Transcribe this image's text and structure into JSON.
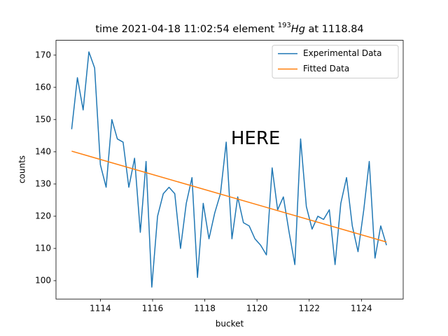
{
  "chart_data": {
    "type": "line",
    "title": {
      "prefix": "time 2021-04-18 11:02:54 element ",
      "mass": "193",
      "symbol": "Hg",
      "suffix": " at 1118.84"
    },
    "x_label": "bucket",
    "y_label": "counts",
    "annotation": {
      "text": "HERE",
      "x": 1119.0,
      "y": 144,
      "color": "#ff0000"
    },
    "series": [
      {
        "name": "Experimental Data",
        "color": "#1f77b4",
        "x": [
          1112.9,
          1113.12,
          1113.34,
          1113.56,
          1113.78,
          1114.0,
          1114.22,
          1114.44,
          1114.65,
          1114.87,
          1115.09,
          1115.31,
          1115.53,
          1115.75,
          1115.97,
          1116.19,
          1116.41,
          1116.63,
          1116.85,
          1117.07,
          1117.29,
          1117.51,
          1117.72,
          1117.94,
          1118.16,
          1118.38,
          1118.6,
          1118.82,
          1119.04,
          1119.26,
          1119.48,
          1119.7,
          1119.92,
          1120.14,
          1120.36,
          1120.58,
          1120.79,
          1121.01,
          1121.23,
          1121.45,
          1121.67,
          1121.89,
          1122.11,
          1122.33,
          1122.55,
          1122.77,
          1122.99,
          1123.21,
          1123.43,
          1123.65,
          1123.87,
          1124.09,
          1124.3,
          1124.52,
          1124.74,
          1124.96
        ],
        "values": [
          147,
          163,
          153,
          171,
          166,
          136,
          129,
          150,
          144,
          143,
          129,
          138,
          115,
          137,
          98,
          120,
          127,
          129,
          127,
          110,
          124,
          132,
          101,
          124,
          113,
          121,
          127,
          143,
          113,
          126,
          118,
          117,
          113,
          111,
          108,
          135,
          122,
          126,
          115,
          105,
          144,
          123,
          116,
          120,
          119,
          122,
          105,
          124,
          132,
          117,
          109,
          122,
          137,
          107,
          117,
          111
        ]
      },
      {
        "name": "Fitted Data",
        "color": "#ff7f0e",
        "x": [
          1112.9,
          1124.96
        ],
        "values": [
          140.2,
          112.0
        ]
      }
    ],
    "xlim": [
      1112.3,
      1125.6
    ],
    "xticks": [
      1114,
      1116,
      1118,
      1120,
      1122,
      1124
    ],
    "ylim": [
      94.3,
      174.6
    ],
    "yticks": [
      100,
      110,
      120,
      130,
      140,
      150,
      160,
      170
    ],
    "grid": false,
    "legend": "upper right"
  }
}
